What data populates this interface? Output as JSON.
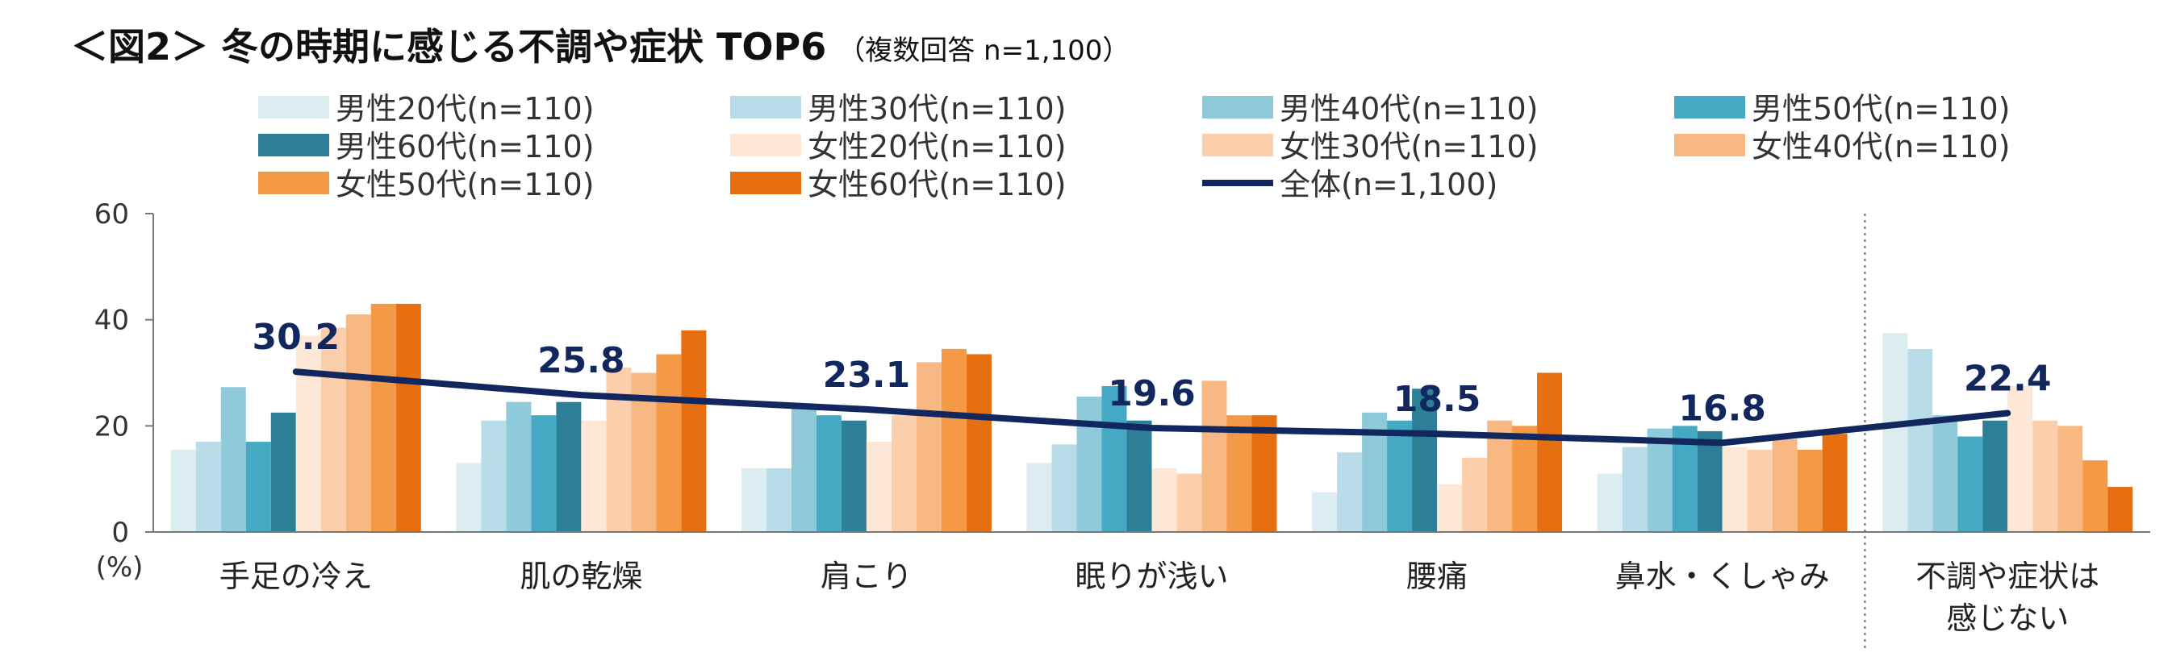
{
  "title": {
    "main": "＜図2＞ 冬の時期に感じる不調や症状 TOP6",
    "note": "（複数回答 n=1,100）"
  },
  "colors": {
    "男性20代": "#dcedf2",
    "男性30代": "#b8dde8",
    "男性40代": "#8ecad9",
    "男性50代": "#46a9c4",
    "男性60代": "#2d7f98",
    "女性20代": "#fde7d6",
    "女性30代": "#fbcfab",
    "女性40代": "#f8b884",
    "女性50代": "#f49a47",
    "女性60代": "#e66f12",
    "全体": "#13275f"
  },
  "chart_data": {
    "type": "bar",
    "categories": [
      [
        "手足の冷え"
      ],
      [
        "肌の乾燥"
      ],
      [
        "肩こり"
      ],
      [
        "眠りが浅い"
      ],
      [
        "腰痛"
      ],
      [
        "鼻水・くしゃみ"
      ],
      [
        "不調や症状は",
        "感じない"
      ]
    ],
    "ylabel": "(%)",
    "ylim": [
      0,
      60
    ],
    "yticks": [
      0,
      20,
      40,
      60
    ],
    "legend_position": "top",
    "separator_before_last_category": true,
    "series": [
      {
        "name": "男性20代(n=110)",
        "key": "男性20代",
        "values": [
          15.5,
          13.0,
          12.0,
          13.0,
          7.5,
          11.0,
          37.5
        ]
      },
      {
        "name": "男性30代(n=110)",
        "key": "男性30代",
        "values": [
          17.0,
          21.0,
          12.0,
          16.5,
          15.0,
          16.0,
          34.5
        ]
      },
      {
        "name": "男性40代(n=110)",
        "key": "男性40代",
        "values": [
          27.3,
          24.5,
          23.5,
          25.5,
          22.5,
          19.5,
          22.0
        ]
      },
      {
        "name": "男性50代(n=110)",
        "key": "男性50代",
        "values": [
          17.0,
          22.0,
          22.0,
          27.5,
          21.0,
          20.0,
          18.0
        ]
      },
      {
        "name": "男性60代(n=110)",
        "key": "男性60代",
        "values": [
          22.5,
          24.5,
          21.0,
          21.0,
          27.0,
          19.0,
          21.0
        ]
      },
      {
        "name": "女性20代(n=110)",
        "key": "女性20代",
        "values": [
          37.0,
          21.0,
          17.0,
          12.0,
          9.0,
          16.0,
          27.5
        ]
      },
      {
        "name": "女性30代(n=110)",
        "key": "女性30代",
        "values": [
          38.5,
          31.0,
          22.0,
          11.0,
          14.0,
          15.5,
          21.0
        ]
      },
      {
        "name": "女性40代(n=110)",
        "key": "女性40代",
        "values": [
          41.0,
          30.0,
          32.0,
          28.5,
          21.0,
          17.5,
          20.0
        ]
      },
      {
        "name": "女性50代(n=110)",
        "key": "女性50代",
        "values": [
          43.0,
          33.5,
          34.5,
          22.0,
          20.0,
          15.5,
          13.5
        ]
      },
      {
        "name": "女性60代(n=110)",
        "key": "女性60代",
        "values": [
          43.0,
          38.0,
          33.5,
          22.0,
          30.0,
          18.5,
          8.5
        ]
      }
    ],
    "overall": {
      "name": "全体(n=1,100)",
      "key": "全体",
      "type": "line",
      "values": [
        30.2,
        25.8,
        23.1,
        19.6,
        18.5,
        16.8,
        22.4
      ],
      "labels": [
        "30.2",
        "25.8",
        "23.1",
        "19.6",
        "18.5",
        "16.8",
        "22.4"
      ]
    }
  }
}
